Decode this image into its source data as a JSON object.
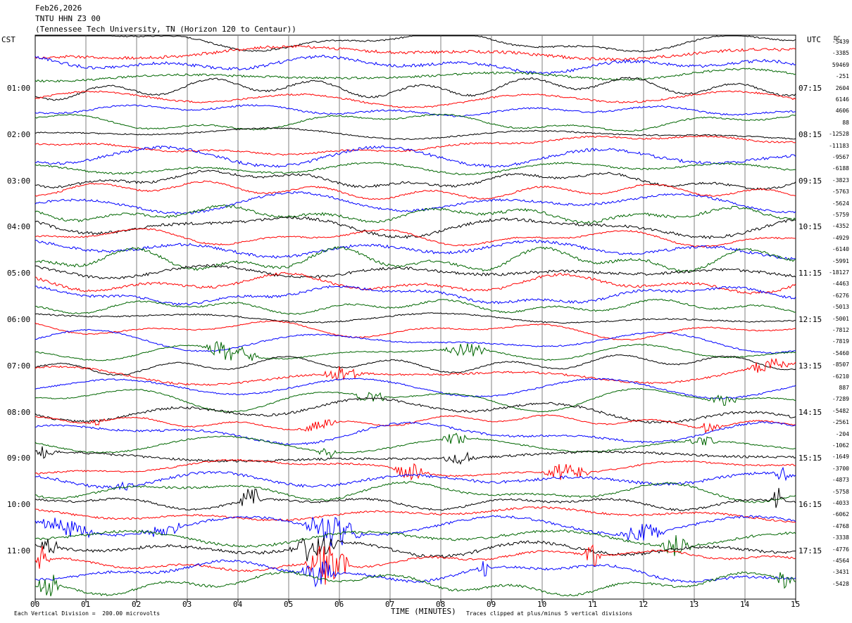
{
  "header": {
    "date": "Feb26,2026",
    "station": "TNTU HHN Z3 00",
    "location": "(Tennessee Tech University, TN (Horizon 120 to Centaur))"
  },
  "axis": {
    "left_zone": "CST",
    "right_zone": "UTC",
    "dc_label": "DC",
    "xlabel": "TIME (MINUTES)",
    "footer_left": "Each Vertical Division =  200.00 microvolts",
    "footer_right": "Traces clipped at plus/minus 5 vertical divisions"
  },
  "colors": {
    "black": "#000000",
    "red": "#ff0000",
    "blue": "#0000ff",
    "green": "#006600",
    "grid": "#808080"
  },
  "chart_data": {
    "type": "line",
    "title": "TNTU HHN Z3 00",
    "xlabel": "TIME (MINUTES)",
    "ylabel": "",
    "xlim": [
      0,
      15
    ],
    "x_ticks": [
      "00",
      "01",
      "02",
      "03",
      "04",
      "05",
      "06",
      "07",
      "08",
      "09",
      "10",
      "11",
      "12",
      "13",
      "14",
      "15"
    ],
    "left_time_labels": [
      "01:00",
      "02:00",
      "03:00",
      "04:00",
      "05:00",
      "06:00",
      "07:00",
      "08:00",
      "09:00",
      "10:00",
      "11:00"
    ],
    "right_time_labels": [
      "07:15",
      "08:15",
      "09:15",
      "10:15",
      "11:15",
      "12:15",
      "13:15",
      "14:15",
      "15:15",
      "16:15",
      "17:15"
    ],
    "dc_offsets": [
      "-5439",
      "-3385",
      "59469",
      "-251",
      "2604",
      "6146",
      "4606",
      "88",
      "-12528",
      "-11183",
      "-9567",
      "-6188",
      "-3823",
      "-5763",
      "-5624",
      "-5759",
      "-4352",
      "-4929",
      "-6140",
      "-5991",
      "-18127",
      "-4463",
      "-6276",
      "-5013",
      "-5001",
      "-7812",
      "-7819",
      "-5460",
      "-8507",
      "-6210",
      "887",
      "-7289",
      "-5482",
      "-2561",
      "-204",
      "-1062",
      "-1649",
      "-3700",
      "-4873",
      "-5758",
      "-4033",
      "-6062",
      "-4768",
      "-3338",
      "-4776",
      "-4564",
      "-3431",
      "-5428"
    ],
    "trace_colors": [
      "black",
      "red",
      "blue",
      "green"
    ],
    "trace_count": 48,
    "minutes_per_line": 15,
    "microvolts_per_division": 200,
    "clip_divisions": 5,
    "grid": true
  }
}
